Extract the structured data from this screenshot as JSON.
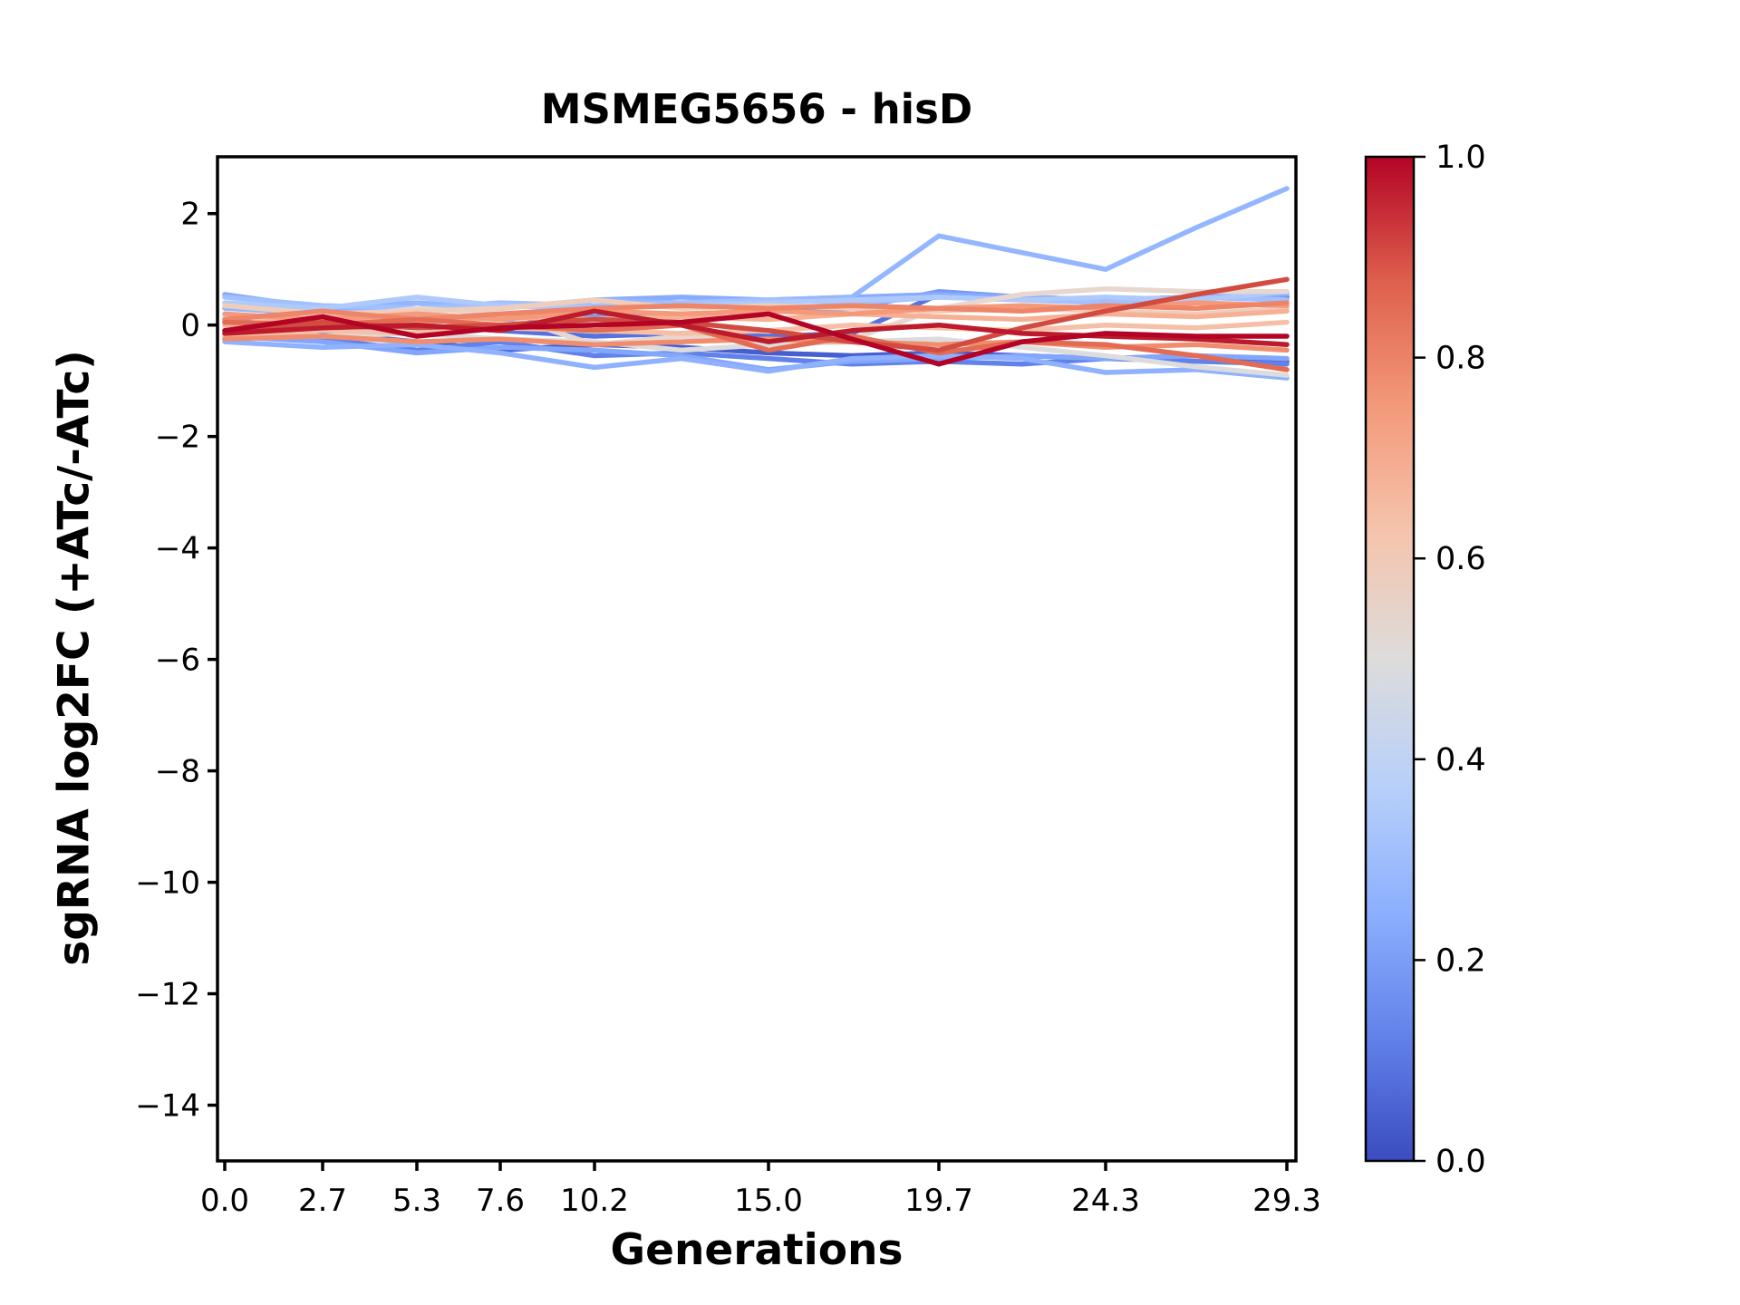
{
  "figure": {
    "background": "#ffffff"
  },
  "chart_data": {
    "type": "line",
    "title": "MSMEG5656 - hisD",
    "xlabel": "Generations",
    "ylabel": "sgRNA log2FC (+ATc/-ATc)",
    "grid": false,
    "legend": "none (colorbar encodes line value 0.0-1.0, coolwarm colormap)",
    "xlim": [
      -0.2,
      29.55
    ],
    "ylim": [
      -15.0,
      3.02
    ],
    "x": [
      0.0,
      2.7,
      5.3,
      7.6,
      10.2,
      12.6,
      15.0,
      17.3,
      19.7,
      22.0,
      24.3,
      26.8,
      29.3
    ],
    "xticks": {
      "values": [
        0.0,
        2.7,
        5.3,
        7.6,
        10.2,
        15.0,
        19.7,
        24.3,
        29.3
      ],
      "labels": [
        "0.0",
        "2.7",
        "5.3",
        "7.6",
        "10.2",
        "15.0",
        "19.7",
        "24.3",
        "29.3"
      ]
    },
    "yticks": {
      "values": [
        2,
        0,
        -2,
        -4,
        -6,
        -8,
        -10,
        -12,
        -14
      ],
      "labels": [
        "2",
        "0",
        "−2",
        "−4",
        "−6",
        "−8",
        "−10",
        "−12",
        "−14"
      ]
    },
    "line_width": 5.5,
    "series": [
      {
        "c": 0.05,
        "color": "#465ecf",
        "values": [
          -0.25,
          -0.15,
          -0.3,
          -0.45,
          -0.35,
          -0.4,
          -0.5,
          -0.55,
          -0.5,
          -0.55,
          -0.6,
          -0.55,
          -0.65
        ]
      },
      {
        "c": 0.1,
        "color": "#5572df",
        "values": [
          0.05,
          -0.1,
          0.0,
          -0.1,
          -0.2,
          -0.15,
          -0.2,
          -0.15,
          0.55,
          0.5,
          0.45,
          0.5,
          0.5
        ]
      },
      {
        "c": 0.15,
        "color": "#6282ea",
        "values": [
          -0.15,
          -0.25,
          -0.45,
          -0.3,
          -0.55,
          -0.5,
          -0.6,
          -0.7,
          -0.65,
          -0.7,
          -0.6,
          -0.65,
          -0.7
        ]
      },
      {
        "c": 0.22,
        "color": "#7699f6",
        "values": [
          0.1,
          0.0,
          0.2,
          0.1,
          0.15,
          0.2,
          0.25,
          0.3,
          0.6,
          0.5,
          0.45,
          0.5,
          0.45
        ]
      },
      {
        "c": 0.27,
        "color": "#82a6fb",
        "values": [
          -0.2,
          -0.3,
          -0.5,
          -0.4,
          -0.45,
          -0.55,
          -0.8,
          -0.65,
          -0.6,
          -0.55,
          -0.6,
          -0.55,
          -0.6
        ]
      },
      {
        "c": 0.3,
        "color": "#88abfd",
        "values": [
          0.55,
          0.3,
          0.4,
          0.3,
          0.45,
          0.5,
          0.45,
          0.5,
          0.55,
          0.5,
          0.45,
          0.5,
          0.55
        ]
      },
      {
        "c": 0.33,
        "color": "#8fb1fe",
        "values": [
          -0.3,
          -0.4,
          -0.35,
          -0.5,
          -0.76,
          -0.6,
          -0.83,
          -0.6,
          -0.55,
          -0.6,
          -0.85,
          -0.8,
          -0.95
        ]
      },
      {
        "c": 0.35,
        "color": "#94b6ff",
        "values": [
          0.3,
          0.2,
          0.4,
          0.3,
          0.45,
          0.4,
          0.45,
          0.5,
          1.6,
          1.3,
          1.0,
          1.75,
          2.45
        ]
      },
      {
        "c": 0.4,
        "color": "#a1c0ff",
        "values": [
          0.5,
          0.35,
          0.3,
          0.4,
          0.35,
          0.4,
          0.45,
          0.4,
          0.5,
          0.45,
          0.4,
          0.5,
          0.45
        ]
      },
      {
        "c": 0.45,
        "color": "#aec9fc",
        "values": [
          0.4,
          0.3,
          0.5,
          0.35,
          0.3,
          0.35,
          0.4,
          0.45,
          0.5,
          0.45,
          0.5,
          0.45,
          0.6
        ]
      },
      {
        "c": 0.5,
        "color": "#dcdcdc",
        "values": [
          -0.1,
          -0.2,
          -0.15,
          -0.25,
          -0.3,
          -0.45,
          -0.35,
          -0.3,
          -0.25,
          -0.4,
          -0.55,
          -0.75,
          -0.9
        ]
      },
      {
        "c": 0.55,
        "color": "#e7d7cf",
        "values": [
          0.15,
          0.1,
          0.3,
          0.2,
          -0.35,
          -0.2,
          -0.3,
          -0.25,
          0.3,
          0.55,
          0.65,
          0.6,
          0.6
        ]
      },
      {
        "c": 0.6,
        "color": "#f0cdba",
        "values": [
          0.35,
          0.2,
          0.25,
          0.3,
          0.45,
          0.3,
          0.35,
          0.3,
          0.25,
          0.3,
          0.25,
          0.2,
          0.3
        ]
      },
      {
        "c": 0.65,
        "color": "#f5c0a7",
        "values": [
          -0.2,
          -0.1,
          -0.15,
          -0.05,
          -0.1,
          -0.15,
          -0.1,
          0.0,
          -0.05,
          -0.1,
          0.0,
          -0.05,
          0.05
        ]
      },
      {
        "c": 0.7,
        "color": "#f6b194",
        "values": [
          0.0,
          0.15,
          0.05,
          0.15,
          0.1,
          0.15,
          0.1,
          0.2,
          0.15,
          0.1,
          0.2,
          0.15,
          0.25
        ]
      },
      {
        "c": 0.75,
        "color": "#f49a7b",
        "values": [
          0.2,
          0.1,
          0.2,
          0.1,
          0.25,
          0.2,
          0.25,
          0.2,
          0.3,
          0.35,
          0.3,
          0.4,
          0.35
        ]
      },
      {
        "c": 0.78,
        "color": "#f18d6f",
        "values": [
          -0.25,
          -0.2,
          -0.3,
          -0.25,
          -0.35,
          -0.3,
          -0.25,
          -0.3,
          -0.35,
          -0.3,
          -0.4,
          -0.35,
          -0.45
        ]
      },
      {
        "c": 0.8,
        "color": "#ee8468",
        "values": [
          0.1,
          0.25,
          0.1,
          0.2,
          0.3,
          0.35,
          0.3,
          0.35,
          0.3,
          0.25,
          0.35,
          0.3,
          0.4
        ]
      },
      {
        "c": 0.85,
        "color": "#e36b54",
        "values": [
          0.05,
          0.0,
          0.1,
          0.0,
          -0.1,
          0.0,
          -0.45,
          -0.2,
          -0.5,
          -0.3,
          -0.35,
          -0.55,
          -0.8
        ]
      },
      {
        "c": 0.9,
        "color": "#d24b40",
        "values": [
          -0.1,
          0.05,
          -0.05,
          0.0,
          0.1,
          0.05,
          -0.1,
          -0.3,
          -0.45,
          -0.05,
          0.25,
          0.55,
          0.82
        ]
      },
      {
        "c": 0.97,
        "color": "#bb1b2c",
        "values": [
          -0.15,
          -0.05,
          0.0,
          -0.1,
          0.25,
          0.0,
          -0.3,
          -0.1,
          0.0,
          -0.15,
          -0.2,
          -0.25,
          -0.35
        ]
      },
      {
        "c": 1.0,
        "color": "#b40426",
        "values": [
          -0.1,
          0.15,
          -0.2,
          -0.05,
          0.0,
          0.05,
          0.2,
          -0.25,
          -0.7,
          -0.3,
          -0.15,
          -0.2,
          -0.2
        ]
      }
    ],
    "colorbar": {
      "colormap": "coolwarm",
      "orientation": "vertical",
      "position": "right",
      "ticks": {
        "values": [
          0.0,
          0.2,
          0.4,
          0.6,
          0.8,
          1.0
        ],
        "labels": [
          "0.0",
          "0.2",
          "0.4",
          "0.6",
          "0.8",
          "1.0"
        ]
      },
      "stops": [
        {
          "at": 0.0,
          "color": "#3b4cc0"
        },
        {
          "at": 0.125,
          "color": "#6282ea"
        },
        {
          "at": 0.25,
          "color": "#8db0fe"
        },
        {
          "at": 0.375,
          "color": "#b8d0f9"
        },
        {
          "at": 0.5,
          "color": "#dddcdb"
        },
        {
          "at": 0.625,
          "color": "#f5c4ad"
        },
        {
          "at": 0.75,
          "color": "#f49a7b"
        },
        {
          "at": 0.875,
          "color": "#de604d"
        },
        {
          "at": 1.0,
          "color": "#b40426"
        }
      ]
    }
  }
}
